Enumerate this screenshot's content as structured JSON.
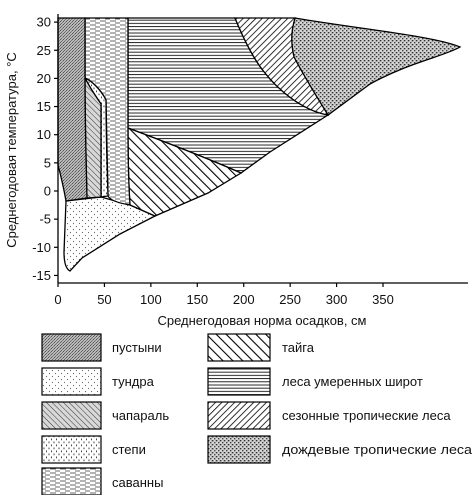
{
  "chart": {
    "x_axis": {
      "label": "Среднегодовая норма осадков, см",
      "ticks": [
        "0",
        "50",
        "100",
        "150",
        "200",
        "250",
        "300",
        "350"
      ]
    },
    "y_axis": {
      "label": "Среднегодовая температура, °С",
      "ticks": [
        "30",
        "25",
        "20",
        "15",
        "10",
        "5",
        "0",
        "-5",
        "-10",
        "-15"
      ]
    }
  },
  "legend": {
    "desert": "пустыни",
    "tundra": "тундра",
    "chaparral": "чапараль",
    "steppe": "степи",
    "savanna": "саванны",
    "taiga": "тайга",
    "temperate_forest": "леса умеренных широт",
    "seasonal_tropical": "сезонные тропические леса",
    "rainforest": "дождевые тропические леса"
  },
  "patterns": {
    "desert": "dense-grey-stipple",
    "tundra": "sparse-dots",
    "chaparral": "fine-diagonal-hatch",
    "steppe": "short-dashes",
    "savanna": "horizontal-dashes",
    "taiga": "bold-diagonal-hatch",
    "temperate_forest": "horizontal-lines",
    "seasonal_tropical": "dense-diagonal-hatch",
    "rainforest": "coarse-stipple"
  }
}
